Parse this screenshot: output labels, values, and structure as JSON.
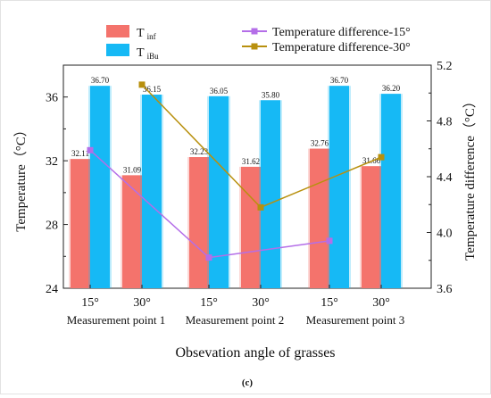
{
  "chart_data": {
    "type": "bar",
    "groups": [
      "Measurement point 1",
      "Measurement point 2",
      "Measurement point 3"
    ],
    "angles": [
      "15°",
      "30°",
      "15°",
      "30°",
      "15°",
      "30°"
    ],
    "xlabel": "Obsevation angle of grasses",
    "ylabel_left": "Temperature（°C）",
    "ylabel_right": "Temperature difference（°C）",
    "ylim_left": [
      24,
      38
    ],
    "yticks_left": [
      "24",
      "28",
      "32",
      "36"
    ],
    "ylim_right": [
      3.6,
      5.2
    ],
    "yticks_right": [
      "3.6",
      "4.0",
      "4.4",
      "4.8",
      "5.2"
    ],
    "series_bars": [
      {
        "name_main": "T",
        "name_sub": "inf",
        "color": "#f4736c",
        "values": [
          32.11,
          31.09,
          32.23,
          31.62,
          32.76,
          31.66
        ],
        "labels": [
          "32.11",
          "31.09",
          "32.23",
          "31.62",
          "32.76",
          "31.66"
        ]
      },
      {
        "name_main": "T",
        "name_sub": "iBu",
        "color": "#16b9f5",
        "values": [
          36.7,
          36.15,
          36.05,
          35.8,
          36.7,
          36.2
        ],
        "labels": [
          "36.70",
          "36.15",
          "36.05",
          "35.80",
          "36.70",
          "36.20"
        ]
      }
    ],
    "series_lines": [
      {
        "name": "Temperature difference-15°",
        "color": "#b46ee8",
        "x_index": [
          0,
          2,
          4
        ],
        "values": [
          4.59,
          3.82,
          3.94
        ]
      },
      {
        "name": "Temperature difference-30°",
        "color": "#b8900e",
        "x_index": [
          1,
          3,
          5
        ],
        "values": [
          5.06,
          4.18,
          4.54
        ]
      }
    ],
    "caption": "(c)"
  }
}
